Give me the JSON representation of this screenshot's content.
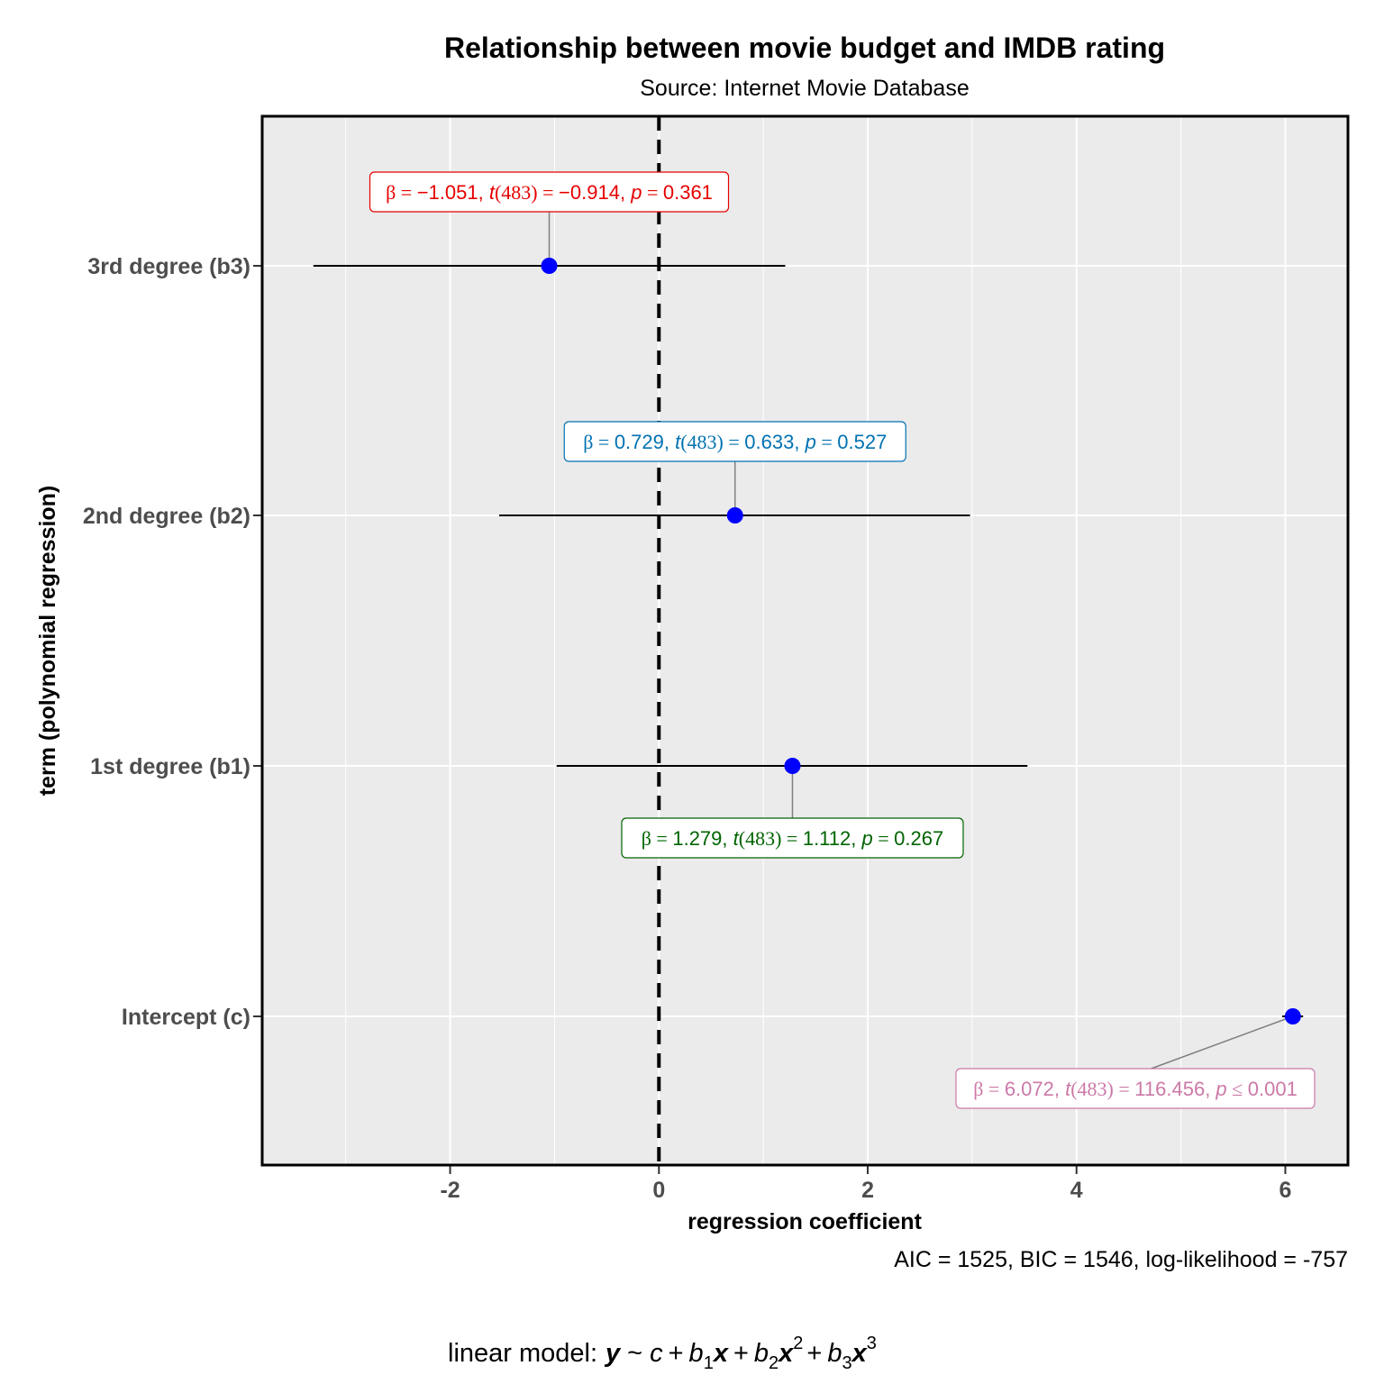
{
  "chart_data": {
    "type": "scatter",
    "title": "Relationship between movie budget and IMDB rating",
    "subtitle": "Source: Internet Movie Database",
    "xlabel": "regression coefficient",
    "ylabel": "term (polynomial regression)",
    "xlim": [
      -3.8,
      6.6
    ],
    "x_ticks": [
      -2,
      0,
      2,
      4,
      6
    ],
    "x_tick_labels": [
      "-2",
      "0",
      "2",
      "4",
      "6"
    ],
    "reference_line": 0,
    "grid": true,
    "caption": "AIC = 1525, BIC = 1546, log-likelihood = -757",
    "model": {
      "prefix": "linear model:",
      "formula": "y ~ c + b1x + b2x2 + b3x3"
    },
    "terms": [
      {
        "label": "Intercept (c)",
        "estimate": 6.072,
        "conf_low": 5.97,
        "conf_high": 6.17,
        "stats": "β = 6.072,  t(483) = 116.456,  p ≤ 0.001",
        "parts": {
          "beta": "6.072",
          "df": "483",
          "t": "116.456",
          "rel": "≤",
          "p": "0.001"
        },
        "label_color": "#CC79A7",
        "label_side": "below"
      },
      {
        "label": "1st degree (b1)",
        "estimate": 1.279,
        "conf_low": -0.98,
        "conf_high": 3.53,
        "stats": "β = 1.279,  t(483) = 1.112,  p = 0.267",
        "parts": {
          "beta": "1.279",
          "df": "483",
          "t": "1.112",
          "rel": "=",
          "p": "0.267"
        },
        "label_color": "#006400",
        "label_side": "below"
      },
      {
        "label": "2nd degree (b2)",
        "estimate": 0.729,
        "conf_low": -1.53,
        "conf_high": 2.98,
        "stats": "β = 0.729,  t(483) = 0.633,  p = 0.527",
        "parts": {
          "beta": "0.729",
          "df": "483",
          "t": "0.633",
          "rel": "=",
          "p": "0.527"
        },
        "label_color": "#0072B2",
        "label_side": "above"
      },
      {
        "label": "3rd degree (b3)",
        "estimate": -1.051,
        "conf_low": -3.31,
        "conf_high": 1.21,
        "stats": "β = −1.051,  t(483) = −0.914,  p = 0.361",
        "parts": {
          "beta": "−1.051",
          "df": "483",
          "t": "−0.914",
          "rel": "=",
          "p": "0.361"
        },
        "label_color": "#E60000",
        "label_side": "above"
      }
    ],
    "colors": {
      "panel_bg": "#EBEBEB",
      "grid": "#FFFFFF",
      "point": "#0000FF",
      "errorbar": "#000000",
      "leader": "#808080"
    }
  }
}
